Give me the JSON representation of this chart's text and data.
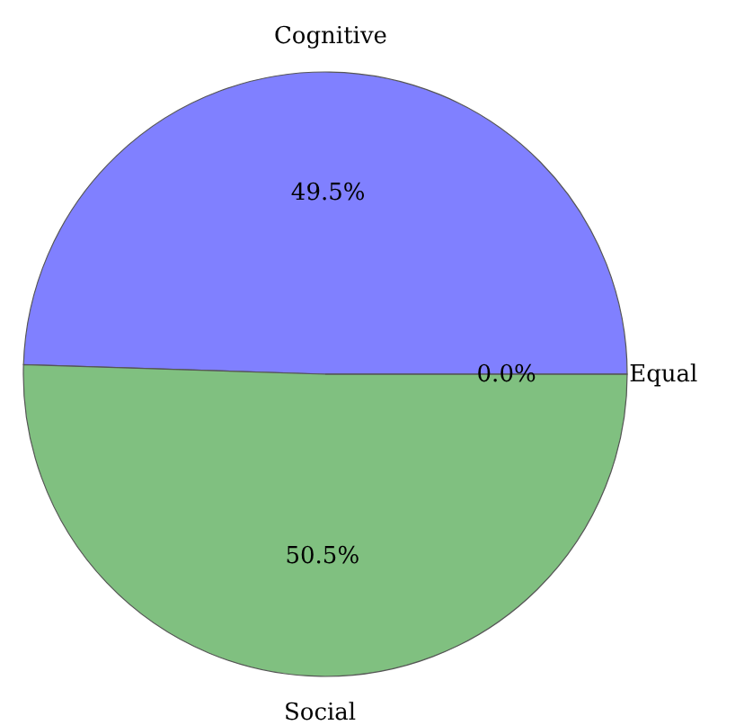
{
  "chart_data": {
    "type": "pie",
    "categories": [
      "Cognitive",
      "Social",
      "Equal"
    ],
    "values": [
      49.5,
      50.5,
      0.0
    ],
    "colors": [
      "#8080ff",
      "#80c080",
      "#80c0c0"
    ],
    "value_labels": [
      "49.5%",
      "50.5%",
      "0.0%"
    ]
  }
}
